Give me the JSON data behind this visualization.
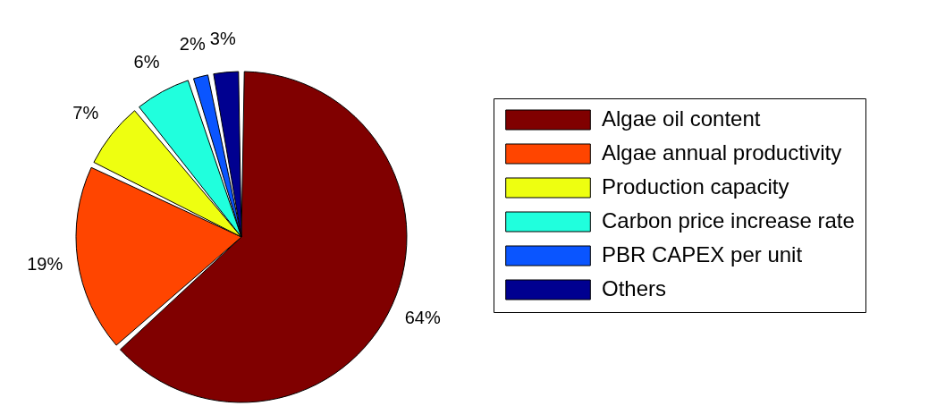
{
  "chart_data": {
    "type": "pie",
    "categories": [
      "Algae oil content",
      "Algae annual productivity",
      "Production capacity",
      "Carbon price increase rate",
      "PBR CAPEX per unit",
      "Others"
    ],
    "values": [
      64,
      19,
      7,
      6,
      2,
      3
    ],
    "value_labels": [
      "64%",
      "19%",
      "7%",
      "6%",
      "2%",
      "3%"
    ],
    "colors": [
      "#800000",
      "#ff4500",
      "#eeff10",
      "#20ffdd",
      "#0a55ff",
      "#000090"
    ],
    "legend": "right"
  }
}
